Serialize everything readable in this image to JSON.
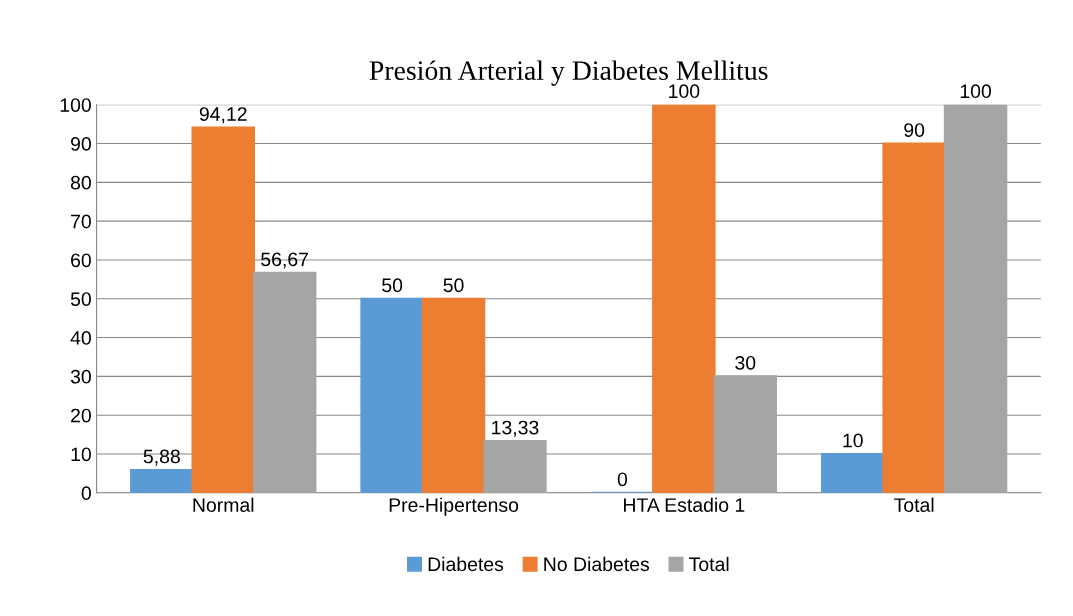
{
  "chart_data": {
    "type": "bar",
    "title": "Presión Arterial y Diabetes Mellitus",
    "categories": [
      "Normal",
      "Pre-Hipertenso",
      "HTA Estadio 1",
      "Total"
    ],
    "series": [
      {
        "name": "Diabetes",
        "color": "#5b9bd5",
        "values": [
          5.88,
          50,
          0,
          10
        ],
        "value_labels": [
          "5,88",
          "50",
          "0",
          "10"
        ]
      },
      {
        "name": "No Diabetes",
        "color": "#ed7d31",
        "values": [
          94.12,
          50,
          100,
          90
        ],
        "value_labels": [
          "94,12",
          "50",
          "100",
          "90"
        ]
      },
      {
        "name": "Total",
        "color": "#a5a5a5",
        "values": [
          56.67,
          13.33,
          30,
          100
        ],
        "value_labels": [
          "56,67",
          "13,33",
          "30",
          "100"
        ]
      }
    ],
    "ylim": [
      0,
      100
    ],
    "yticks": [
      0,
      10,
      20,
      30,
      40,
      50,
      60,
      70,
      80,
      90,
      100
    ],
    "grid": "y",
    "legend": "bottom"
  }
}
